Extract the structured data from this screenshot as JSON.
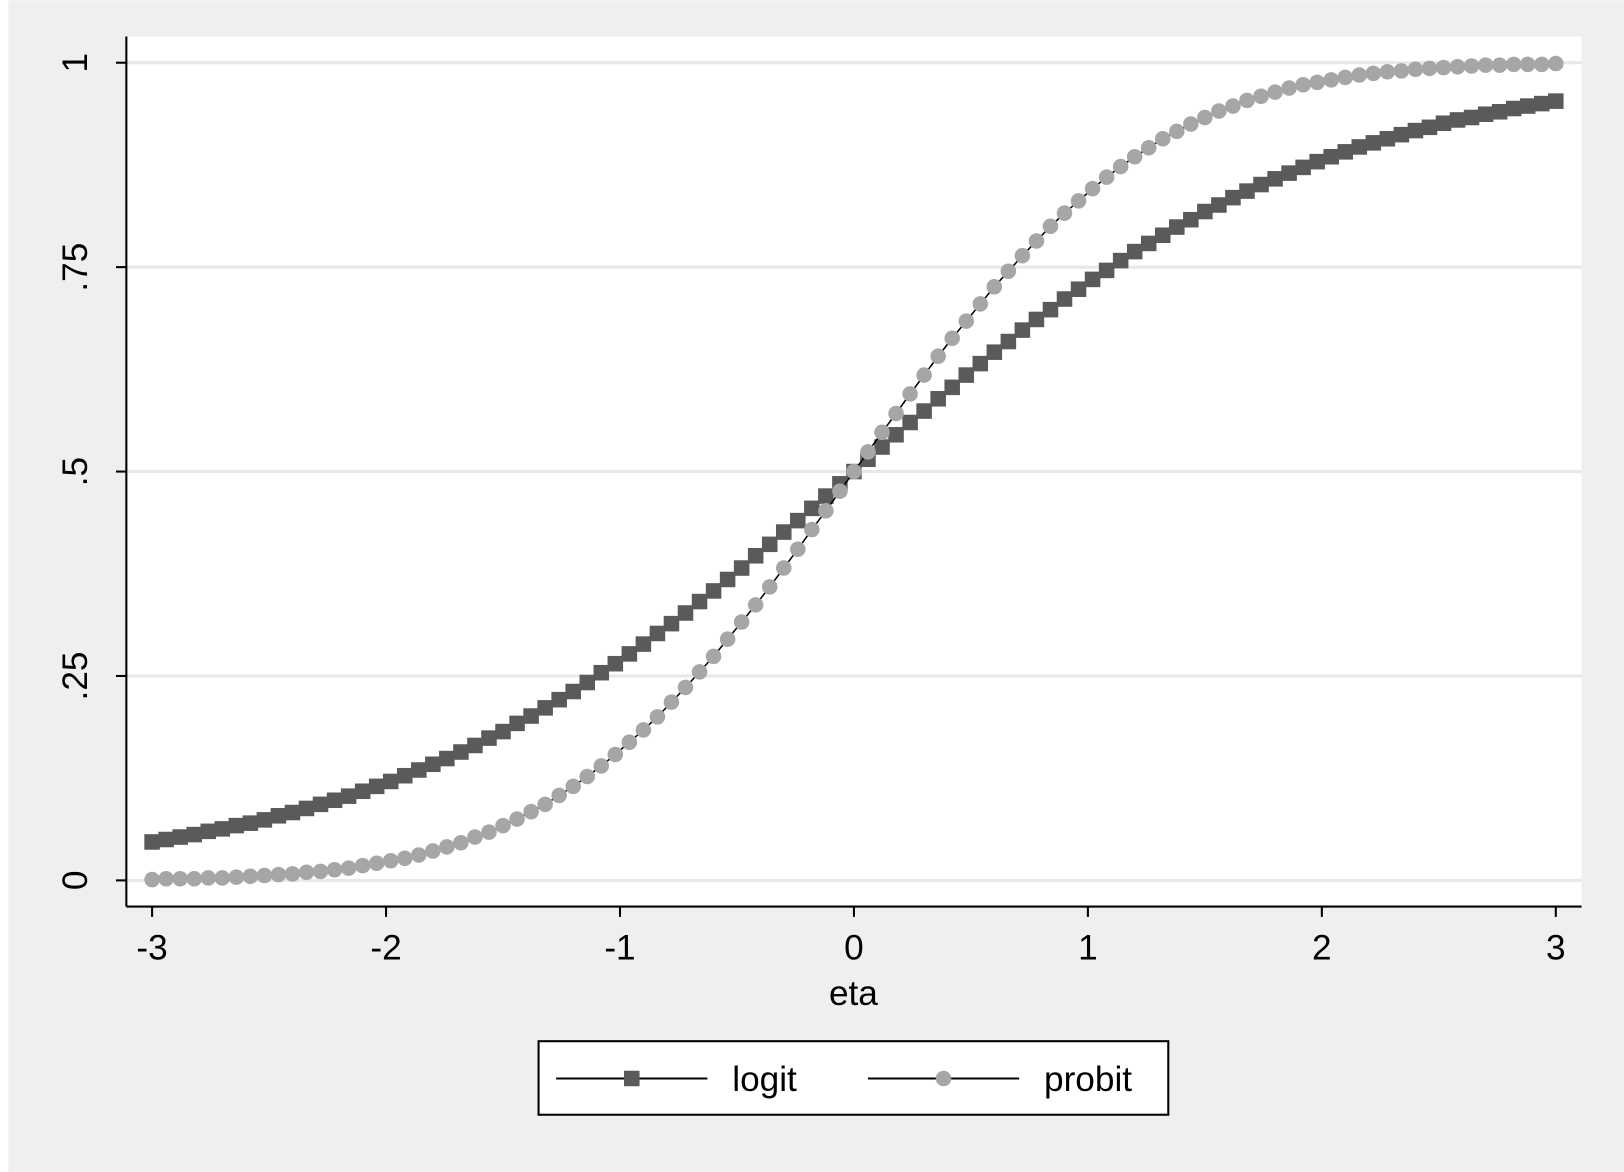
{
  "chart_data": {
    "type": "line",
    "xlabel": "eta",
    "x": [
      -3,
      -2.94,
      -2.88,
      -2.82,
      -2.76,
      -2.7,
      -2.64,
      -2.58,
      -2.52,
      -2.46,
      -2.4,
      -2.34,
      -2.28,
      -2.22,
      -2.16,
      -2.1,
      -2.04,
      -1.98,
      -1.92,
      -1.86,
      -1.8,
      -1.74,
      -1.68,
      -1.62,
      -1.56,
      -1.5,
      -1.44,
      -1.38,
      -1.32,
      -1.26,
      -1.2,
      -1.14,
      -1.08,
      -1.02,
      -0.96,
      -0.9,
      -0.84,
      -0.78,
      -0.72,
      -0.66,
      -0.6,
      -0.54,
      -0.48,
      -0.42,
      -0.36,
      -0.3,
      -0.24,
      -0.18,
      -0.12,
      -0.06,
      0,
      0.06,
      0.12,
      0.18,
      0.24,
      0.3,
      0.36,
      0.42,
      0.48,
      0.54,
      0.6,
      0.66,
      0.72,
      0.78,
      0.84,
      0.9,
      0.96,
      1.02,
      1.08,
      1.14,
      1.2,
      1.26,
      1.32,
      1.38,
      1.44,
      1.5,
      1.56,
      1.62,
      1.68,
      1.74,
      1.8,
      1.86,
      1.92,
      1.98,
      2.04,
      2.1,
      2.16,
      2.22,
      2.28,
      2.34,
      2.4,
      2.46,
      2.52,
      2.58,
      2.64,
      2.7,
      2.76,
      2.82,
      2.88,
      2.94,
      3
    ],
    "series": [
      {
        "name": "logit",
        "color": "#5a5a5a",
        "line_color": "#000000",
        "marker": "square",
        "values": [
          0.047,
          0.05,
          0.053,
          0.056,
          0.06,
          0.063,
          0.067,
          0.07,
          0.074,
          0.079,
          0.083,
          0.088,
          0.093,
          0.098,
          0.103,
          0.109,
          0.115,
          0.121,
          0.128,
          0.135,
          0.142,
          0.149,
          0.157,
          0.165,
          0.174,
          0.182,
          0.192,
          0.201,
          0.211,
          0.221,
          0.231,
          0.242,
          0.254,
          0.265,
          0.277,
          0.289,
          0.302,
          0.314,
          0.327,
          0.341,
          0.354,
          0.368,
          0.382,
          0.397,
          0.411,
          0.426,
          0.44,
          0.455,
          0.47,
          0.485,
          0.5,
          0.515,
          0.53,
          0.545,
          0.56,
          0.574,
          0.589,
          0.603,
          0.618,
          0.632,
          0.646,
          0.659,
          0.673,
          0.686,
          0.698,
          0.711,
          0.723,
          0.735,
          0.746,
          0.758,
          0.769,
          0.779,
          0.789,
          0.799,
          0.808,
          0.818,
          0.826,
          0.835,
          0.843,
          0.851,
          0.858,
          0.865,
          0.872,
          0.879,
          0.885,
          0.891,
          0.897,
          0.902,
          0.907,
          0.912,
          0.917,
          0.921,
          0.926,
          0.93,
          0.933,
          0.937,
          0.94,
          0.944,
          0.947,
          0.95,
          0.953
        ]
      },
      {
        "name": "probit",
        "color": "#a6a6a6",
        "line_color": "#000000",
        "marker": "circle",
        "values": [
          0.001,
          0.002,
          0.002,
          0.002,
          0.003,
          0.003,
          0.004,
          0.005,
          0.006,
          0.007,
          0.008,
          0.01,
          0.011,
          0.013,
          0.015,
          0.018,
          0.021,
          0.024,
          0.027,
          0.031,
          0.036,
          0.041,
          0.046,
          0.053,
          0.059,
          0.067,
          0.075,
          0.084,
          0.093,
          0.104,
          0.115,
          0.127,
          0.14,
          0.154,
          0.169,
          0.184,
          0.2,
          0.218,
          0.236,
          0.255,
          0.274,
          0.295,
          0.316,
          0.337,
          0.359,
          0.382,
          0.405,
          0.429,
          0.452,
          0.476,
          0.5,
          0.524,
          0.548,
          0.571,
          0.595,
          0.618,
          0.641,
          0.663,
          0.684,
          0.705,
          0.726,
          0.745,
          0.764,
          0.782,
          0.8,
          0.816,
          0.831,
          0.846,
          0.86,
          0.873,
          0.885,
          0.896,
          0.907,
          0.916,
          0.925,
          0.933,
          0.941,
          0.947,
          0.954,
          0.959,
          0.964,
          0.969,
          0.973,
          0.976,
          0.979,
          0.982,
          0.985,
          0.987,
          0.989,
          0.99,
          0.992,
          0.993,
          0.994,
          0.995,
          0.996,
          0.997,
          0.997,
          0.998,
          0.998,
          0.998,
          0.999
        ]
      }
    ],
    "xlim": [
      -3.11,
      3.11
    ],
    "xticks": [
      -3,
      -2,
      -1,
      0,
      1,
      2,
      3
    ],
    "ylim": [
      -0.032,
      1.032
    ],
    "yticks": [
      0,
      {
        "value": 0.25,
        "label": ".25"
      },
      {
        "value": 0.5,
        "label": ".5"
      },
      {
        "value": 0.75,
        "label": ".75"
      },
      1
    ],
    "grid": true,
    "legend": "bottom"
  }
}
